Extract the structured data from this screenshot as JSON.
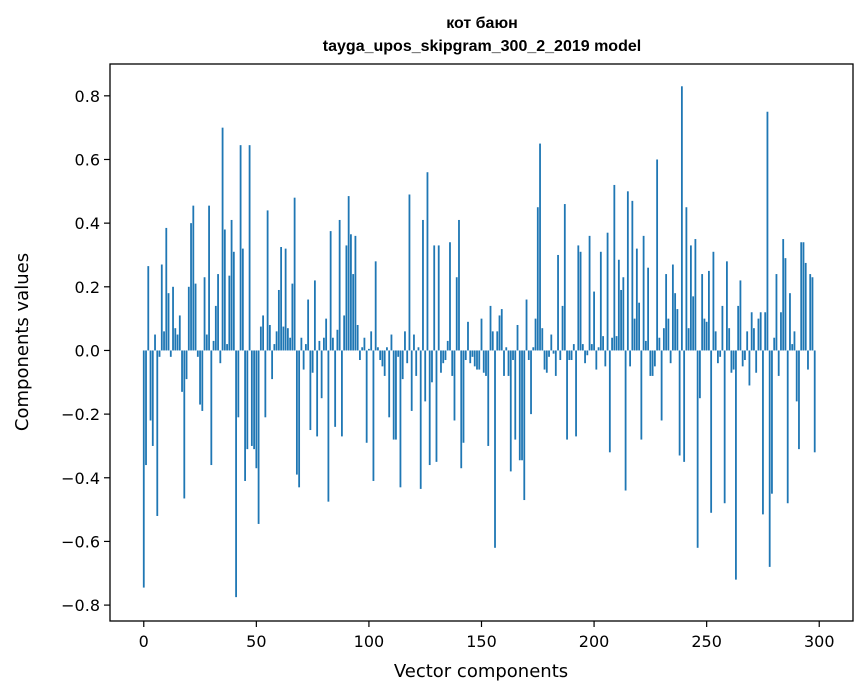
{
  "chart_data": {
    "type": "bar",
    "title": "кот баюн",
    "subtitle": "tayga_upos_skipgram_300_2_2019 model",
    "xlabel": "Vector components",
    "ylabel": "Components values",
    "xlim": [
      -15,
      315
    ],
    "ylim": [
      -0.85,
      0.9
    ],
    "xticks": [
      0,
      50,
      100,
      150,
      200,
      250,
      300
    ],
    "yticks": [
      -0.8,
      -0.6,
      -0.4,
      -0.2,
      0.0,
      0.2,
      0.4,
      0.6,
      0.8
    ],
    "ytick_labels": [
      "−0.8",
      "−0.6",
      "−0.4",
      "−0.2",
      "0.0",
      "0.2",
      "0.4",
      "0.6",
      "0.8"
    ],
    "bar_color": "#1f77b4",
    "grid": false,
    "n_components": 300,
    "values": [
      -0.745,
      -0.36,
      0.265,
      -0.22,
      -0.3,
      0.05,
      -0.52,
      -0.02,
      0.27,
      0.06,
      0.385,
      0.18,
      -0.02,
      0.2,
      0.07,
      0.05,
      0.11,
      -0.13,
      -0.465,
      -0.09,
      0.2,
      0.4,
      0.455,
      0.21,
      -0.02,
      -0.17,
      -0.19,
      0.23,
      0.05,
      0.455,
      -0.36,
      0.03,
      0.14,
      0.24,
      -0.04,
      0.7,
      0.38,
      0.02,
      0.235,
      0.41,
      0.31,
      -0.775,
      -0.21,
      0.645,
      0.32,
      -0.41,
      -0.31,
      0.645,
      -0.3,
      -0.31,
      -0.37,
      -0.545,
      0.075,
      0.11,
      -0.21,
      0.44,
      0.08,
      -0.09,
      0.02,
      0.06,
      0.19,
      0.325,
      0.075,
      0.32,
      0.07,
      0.04,
      0.21,
      0.48,
      -0.39,
      -0.43,
      0.04,
      -0.06,
      0.02,
      0.16,
      -0.25,
      -0.07,
      0.22,
      -0.27,
      0.03,
      -0.15,
      0.04,
      0.1,
      -0.475,
      0.375,
      0.04,
      -0.24,
      0.065,
      0.41,
      -0.27,
      0.11,
      0.33,
      0.485,
      0.365,
      0.24,
      0.36,
      0.08,
      -0.03,
      0.01,
      0.04,
      -0.29,
      0.005,
      0.06,
      -0.41,
      0.28,
      0.01,
      -0.03,
      -0.05,
      -0.08,
      0.01,
      -0.21,
      0.05,
      -0.28,
      -0.28,
      -0.02,
      -0.43,
      -0.09,
      0.06,
      -0.04,
      0.49,
      -0.19,
      0.05,
      -0.08,
      0.01,
      -0.435,
      0.41,
      -0.16,
      0.56,
      -0.36,
      -0.1,
      0.33,
      -0.35,
      0.33,
      -0.07,
      -0.04,
      -0.03,
      0.03,
      0.34,
      -0.08,
      -0.22,
      0.23,
      0.41,
      -0.37,
      -0.29,
      -0.03,
      0.09,
      -0.04,
      -0.02,
      -0.05,
      -0.06,
      -0.06,
      0.1,
      -0.07,
      -0.08,
      -0.3,
      0.14,
      0.06,
      -0.62,
      0.06,
      0.11,
      0.13,
      -0.08,
      0.01,
      -0.08,
      -0.38,
      -0.03,
      -0.28,
      0.08,
      -0.345,
      -0.345,
      -0.47,
      0.16,
      -0.03,
      -0.2,
      0.01,
      0.1,
      0.45,
      0.65,
      0.07,
      -0.06,
      -0.07,
      -0.02,
      0.05,
      -0.01,
      -0.08,
      0.3,
      -0.03,
      0.14,
      0.46,
      -0.28,
      -0.03,
      -0.03,
      0.02,
      -0.27,
      0.33,
      0.31,
      0.02,
      -0.04,
      -0.015,
      0.36,
      0.02,
      0.185,
      -0.06,
      0.01,
      0.31,
      0.045,
      -0.05,
      0.37,
      -0.32,
      0.04,
      0.52,
      0.045,
      0.285,
      0.19,
      0.23,
      -0.44,
      0.5,
      -0.05,
      0.47,
      0.1,
      0.32,
      0.15,
      -0.28,
      0.36,
      0.03,
      0.26,
      -0.08,
      -0.08,
      -0.05,
      0.6,
      0.04,
      -0.22,
      0.07,
      0.24,
      0.1,
      -0.04,
      0.27,
      0.18,
      0.13,
      -0.33,
      0.83,
      -0.35,
      0.45,
      0.07,
      0.33,
      0.17,
      0.35,
      -0.62,
      -0.15,
      0.24,
      0.1,
      0.09,
      0.25,
      -0.51,
      0.31,
      0.06,
      -0.04,
      -0.02,
      0.14,
      -0.48,
      0.28,
      0.07,
      -0.07,
      -0.06,
      -0.72,
      0.14,
      0.22,
      -0.05,
      -0.03,
      0.06,
      -0.11,
      0.12,
      0.07,
      -0.07,
      0.1,
      0.12,
      -0.515,
      0.12,
      0.75,
      -0.68,
      -0.45,
      0.04,
      0.24,
      -0.08,
      0.12,
      0.35,
      0.29,
      -0.48,
      0.18,
      0.02,
      0.06,
      -0.16,
      -0.31,
      0.34,
      0.34,
      0.275,
      -0.06,
      0.24,
      0.23,
      -0.32,
      0.0
    ]
  }
}
